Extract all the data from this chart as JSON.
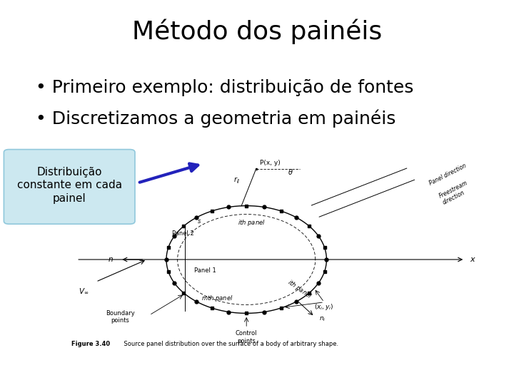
{
  "title": "Método dos painéis",
  "bullet1": "Primeiro exemplo: distribuição de fontes",
  "bullet2": "Discretizamos a geometria em painéis",
  "callout_text": "Distribuição\nconstante em cada\npainel",
  "callout_box_color": "#cce8f0",
  "callout_box_edge": "#90c8dc",
  "arrow_color": "#2222bb",
  "title_fontsize": 26,
  "bullet_fontsize": 18,
  "callout_fontsize": 11,
  "bg_color": "#ffffff",
  "text_color": "#000000",
  "figure_caption_bold": "Figure 3.40",
  "figure_caption_rest": "    Source panel distribution over the surface of a body of arbitrary shape."
}
